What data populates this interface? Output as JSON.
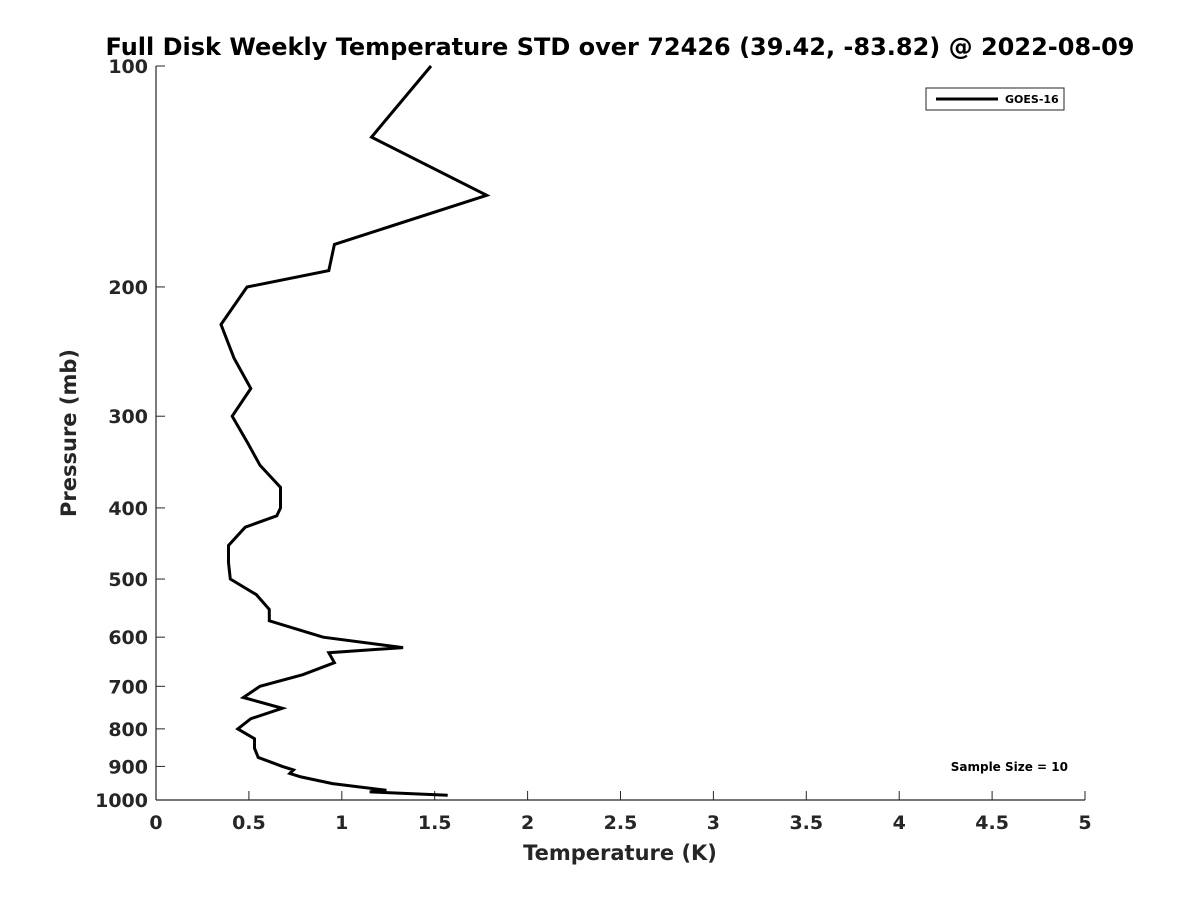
{
  "chart_data": {
    "type": "line",
    "title": "Full Disk Weekly Temperature STD over 72426 (39.42, -83.82) @ 2022-08-09",
    "xlabel": "Temperature (K)",
    "ylabel": "Pressure (mb)",
    "xlim": [
      0,
      5
    ],
    "ylim": [
      100,
      1000
    ],
    "y_scale": "log",
    "y_reversed": true,
    "x_ticks": [
      "0",
      "0.5",
      "1",
      "1.5",
      "2",
      "2.5",
      "3",
      "3.5",
      "4",
      "4.5",
      "5"
    ],
    "y_ticks": [
      "100",
      "200",
      "300",
      "400",
      "500",
      "600",
      "700",
      "800",
      "900",
      "1000"
    ],
    "grid": false,
    "legend_position": "top-right",
    "annotation": "Sample Size = 10",
    "series": [
      {
        "name": "GOES-16",
        "color": "#000000",
        "points": [
          [
            1.48,
            100
          ],
          [
            1.16,
            125
          ],
          [
            1.78,
            150
          ],
          [
            0.96,
            175
          ],
          [
            0.93,
            190
          ],
          [
            0.49,
            200
          ],
          [
            0.35,
            225
          ],
          [
            0.42,
            250
          ],
          [
            0.51,
            275
          ],
          [
            0.41,
            300
          ],
          [
            0.49,
            325
          ],
          [
            0.56,
            350
          ],
          [
            0.67,
            375
          ],
          [
            0.67,
            400
          ],
          [
            0.65,
            410
          ],
          [
            0.48,
            425
          ],
          [
            0.39,
            450
          ],
          [
            0.39,
            475
          ],
          [
            0.4,
            500
          ],
          [
            0.54,
            525
          ],
          [
            0.61,
            550
          ],
          [
            0.61,
            570
          ],
          [
            0.9,
            600
          ],
          [
            1.33,
            620
          ],
          [
            0.93,
            630
          ],
          [
            0.96,
            650
          ],
          [
            0.79,
            675
          ],
          [
            0.56,
            700
          ],
          [
            0.47,
            725
          ],
          [
            0.68,
            750
          ],
          [
            0.51,
            775
          ],
          [
            0.44,
            800
          ],
          [
            0.53,
            825
          ],
          [
            0.53,
            850
          ],
          [
            0.55,
            875
          ],
          [
            0.68,
            900
          ],
          [
            0.74,
            910
          ],
          [
            0.72,
            920
          ],
          [
            0.78,
            930
          ],
          [
            0.95,
            950
          ],
          [
            1.24,
            970
          ],
          [
            1.15,
            975
          ],
          [
            1.57,
            985
          ]
        ]
      }
    ]
  }
}
